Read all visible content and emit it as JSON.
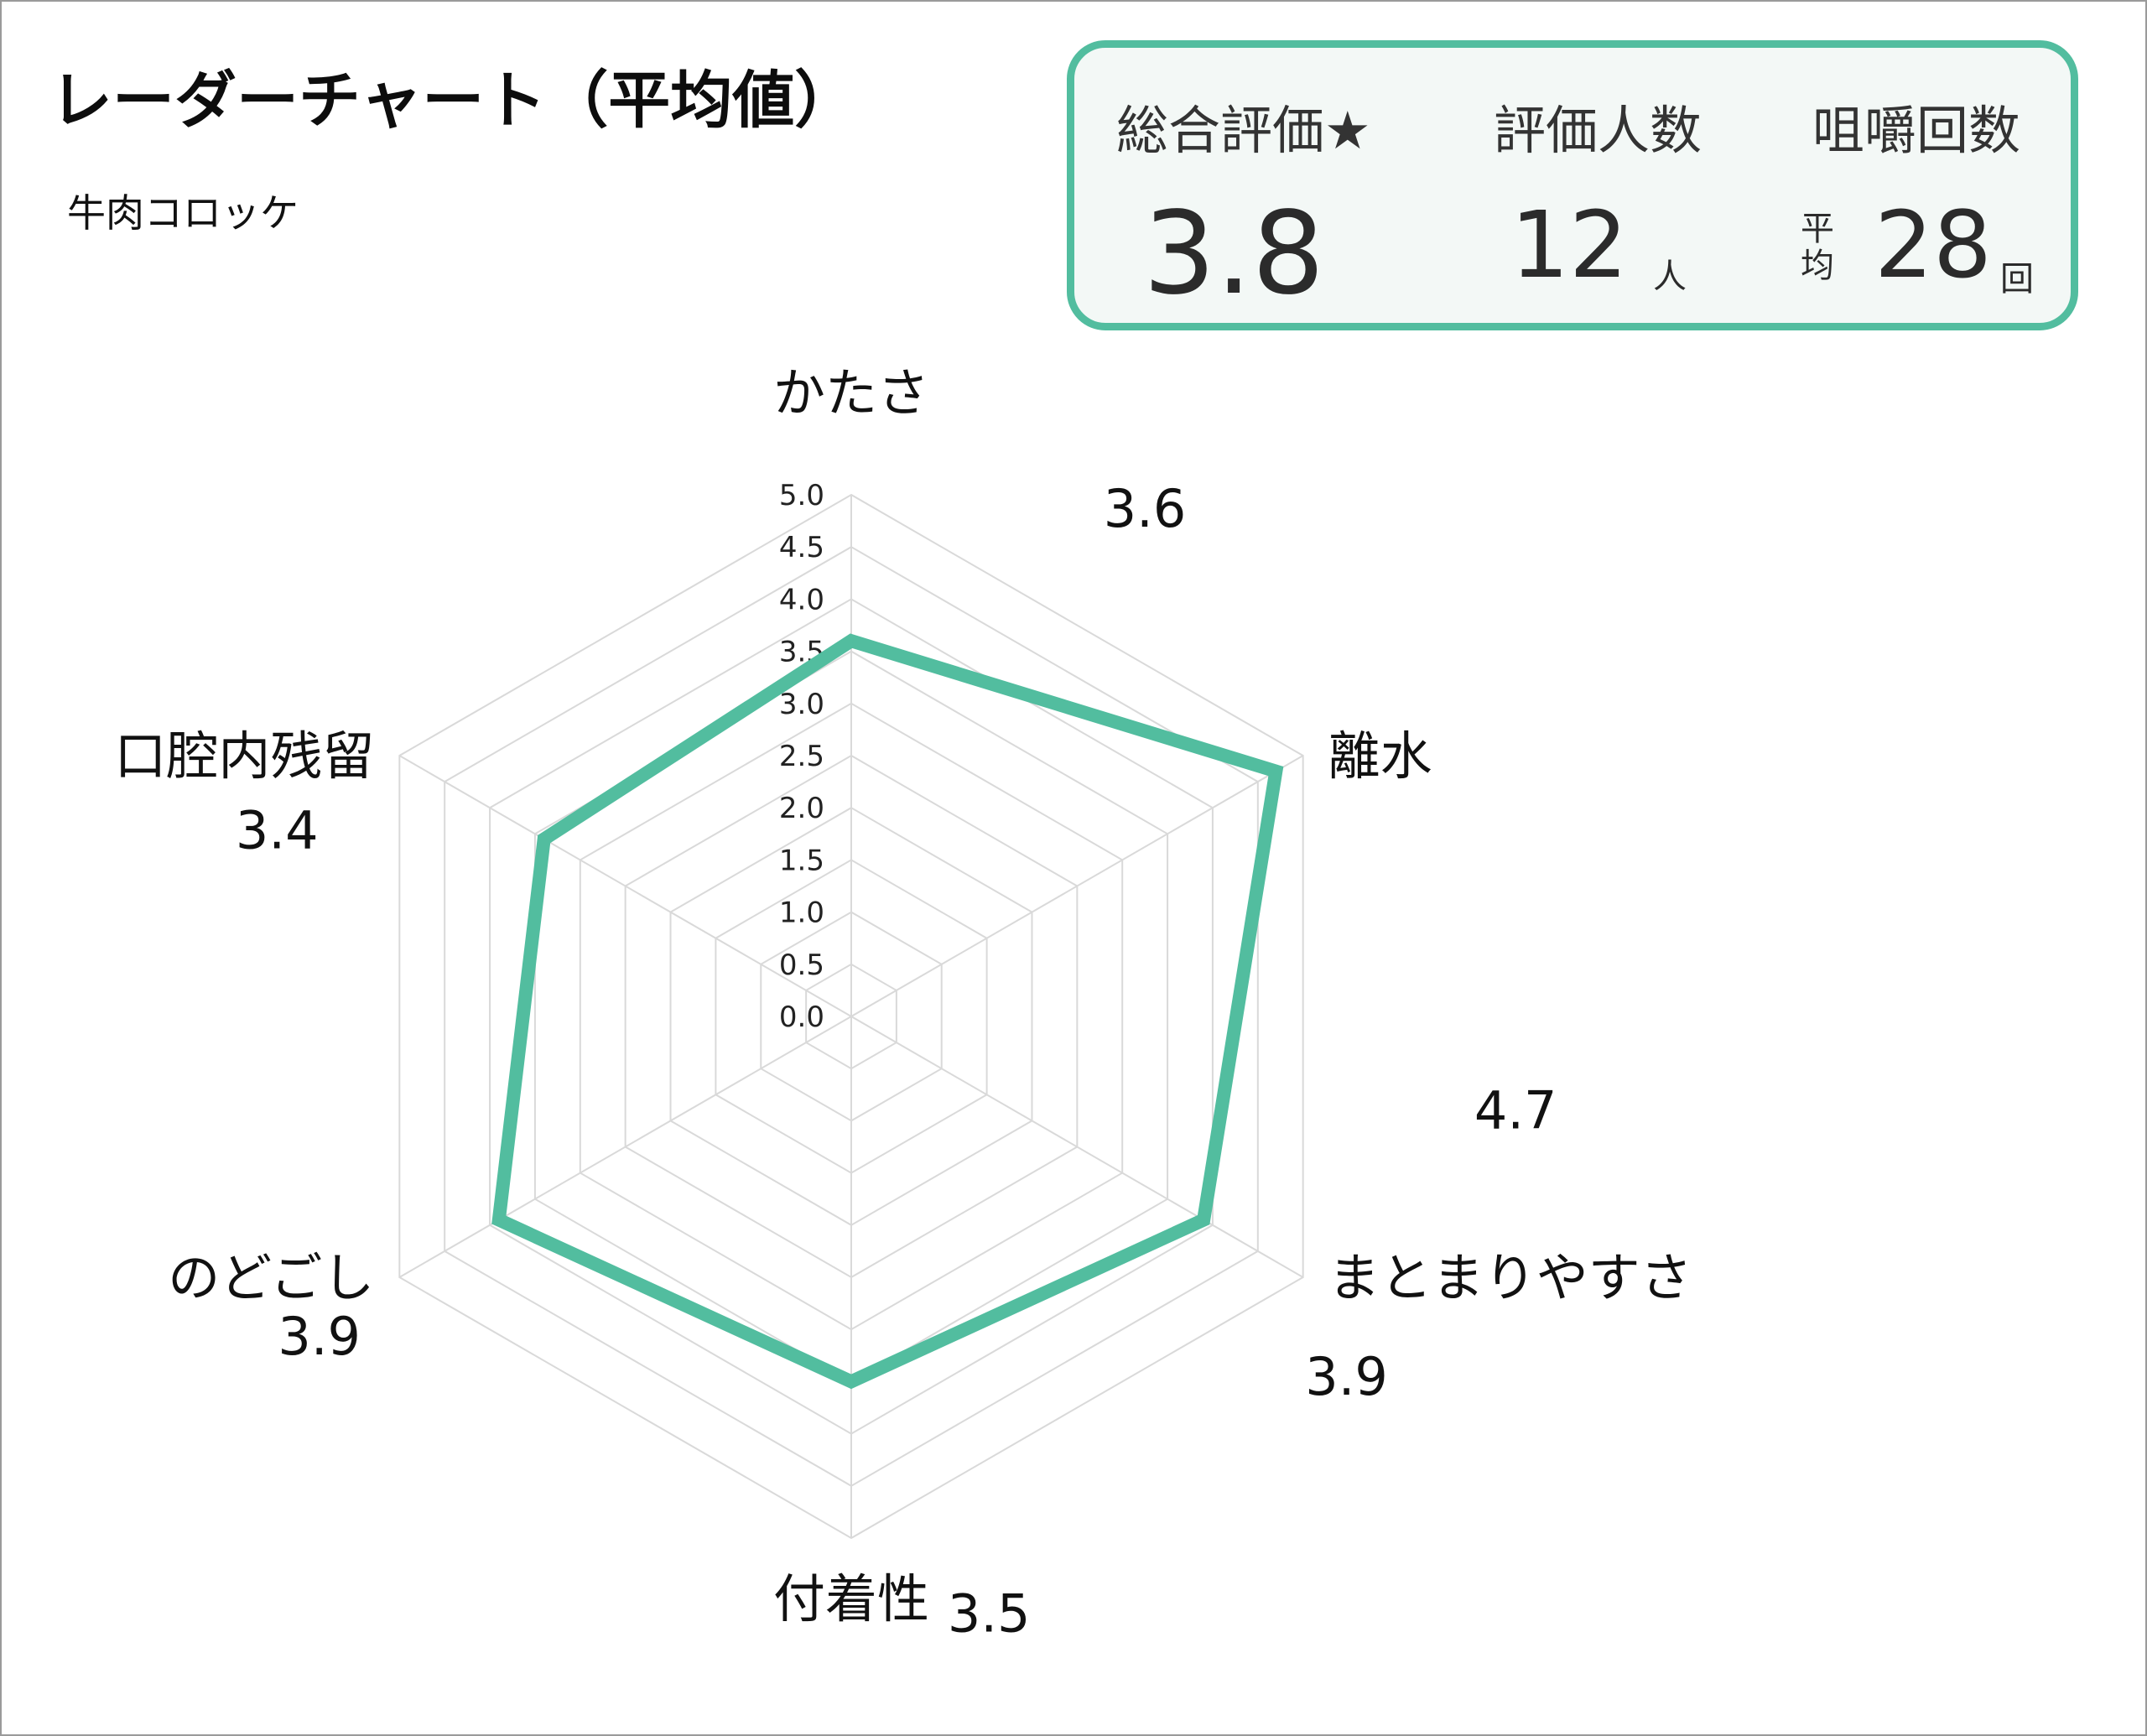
{
  "header": {
    "title": "レーダーチャート（平均値）",
    "subtitle": "牛肉コロッケ"
  },
  "summary": {
    "overall_label": "総合評価★",
    "overall_value": "3.8",
    "raters_label": "評価人数",
    "raters_value": "12",
    "raters_unit": "人",
    "chews_label": "咀嚼回数",
    "chews_prefix_1": "平",
    "chews_prefix_2": "均",
    "chews_value": "28",
    "chews_unit": "回"
  },
  "colors": {
    "accent": "#52bd9f",
    "grid": "#d9d9d9",
    "summary_bg": "#f3f8f6"
  },
  "chart_data": {
    "type": "radar",
    "title": "レーダーチャート（平均値）",
    "subtitle": "牛肉コロッケ",
    "categories": [
      "かたさ",
      "離水",
      "まとまりやすさ",
      "付着性",
      "のどごし",
      "口腔内残留"
    ],
    "values": [
      3.6,
      4.7,
      3.9,
      3.5,
      3.9,
      3.4
    ],
    "value_labels": [
      "3.6",
      "4.7",
      "3.9",
      "3.5",
      "3.9",
      "3.4"
    ],
    "range": [
      0,
      5
    ],
    "ticks": [
      "0.0",
      "0.5",
      "1.0",
      "1.5",
      "2.0",
      "2.5",
      "3.0",
      "3.5",
      "4.0",
      "4.5",
      "5.0"
    ],
    "grid": true,
    "series_color": "#52bd9f"
  }
}
